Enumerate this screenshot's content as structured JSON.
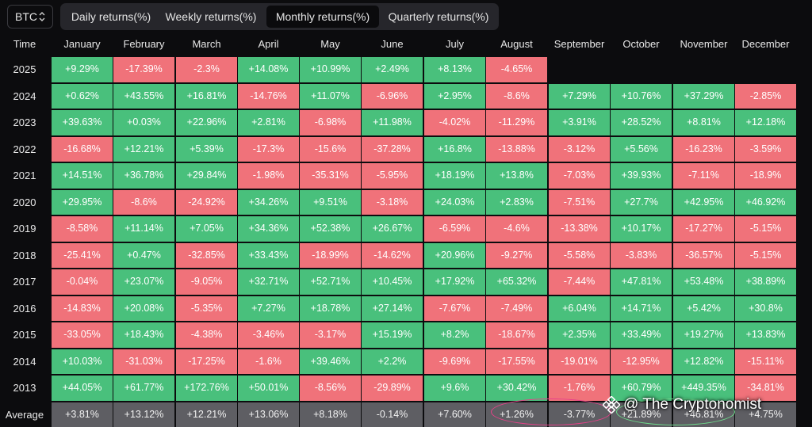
{
  "asset_selector": {
    "value": "BTC"
  },
  "tabs": [
    {
      "label": "Daily returns(%)",
      "active": false
    },
    {
      "label": "Weekly returns(%)",
      "active": false
    },
    {
      "label": "Monthly returns(%)",
      "active": true
    },
    {
      "label": "Quarterly returns(%)",
      "active": false
    }
  ],
  "table": {
    "time_header": "Time",
    "months": [
      "January",
      "February",
      "March",
      "April",
      "May",
      "June",
      "July",
      "August",
      "September",
      "October",
      "November",
      "December"
    ],
    "rows": [
      {
        "year": "2025",
        "values": [
          "+9.29%",
          "-17.39%",
          "-2.3%",
          "+14.08%",
          "+10.99%",
          "+2.49%",
          "+8.13%",
          "-4.65%",
          "",
          "",
          "",
          ""
        ]
      },
      {
        "year": "2024",
        "values": [
          "+0.62%",
          "+43.55%",
          "+16.81%",
          "-14.76%",
          "+11.07%",
          "-6.96%",
          "+2.95%",
          "-8.6%",
          "+7.29%",
          "+10.76%",
          "+37.29%",
          "-2.85%"
        ]
      },
      {
        "year": "2023",
        "values": [
          "+39.63%",
          "+0.03%",
          "+22.96%",
          "+2.81%",
          "-6.98%",
          "+11.98%",
          "-4.02%",
          "-11.29%",
          "+3.91%",
          "+28.52%",
          "+8.81%",
          "+12.18%"
        ]
      },
      {
        "year": "2022",
        "values": [
          "-16.68%",
          "+12.21%",
          "+5.39%",
          "-17.3%",
          "-15.6%",
          "-37.28%",
          "+16.8%",
          "-13.88%",
          "-3.12%",
          "+5.56%",
          "-16.23%",
          "-3.59%"
        ]
      },
      {
        "year": "2021",
        "values": [
          "+14.51%",
          "+36.78%",
          "+29.84%",
          "-1.98%",
          "-35.31%",
          "-5.95%",
          "+18.19%",
          "+13.8%",
          "-7.03%",
          "+39.93%",
          "-7.11%",
          "-18.9%"
        ]
      },
      {
        "year": "2020",
        "values": [
          "+29.95%",
          "-8.6%",
          "-24.92%",
          "+34.26%",
          "+9.51%",
          "-3.18%",
          "+24.03%",
          "+2.83%",
          "-7.51%",
          "+27.7%",
          "+42.95%",
          "+46.92%"
        ]
      },
      {
        "year": "2019",
        "values": [
          "-8.58%",
          "+11.14%",
          "+7.05%",
          "+34.36%",
          "+52.38%",
          "+26.67%",
          "-6.59%",
          "-4.6%",
          "-13.38%",
          "+10.17%",
          "-17.27%",
          "-5.15%"
        ]
      },
      {
        "year": "2018",
        "values": [
          "-25.41%",
          "+0.47%",
          "-32.85%",
          "+33.43%",
          "-18.99%",
          "-14.62%",
          "+20.96%",
          "-9.27%",
          "-5.58%",
          "-3.83%",
          "-36.57%",
          "-5.15%"
        ]
      },
      {
        "year": "2017",
        "values": [
          "-0.04%",
          "+23.07%",
          "-9.05%",
          "+32.71%",
          "+52.71%",
          "+10.45%",
          "+17.92%",
          "+65.32%",
          "-7.44%",
          "+47.81%",
          "+53.48%",
          "+38.89%"
        ]
      },
      {
        "year": "2016",
        "values": [
          "-14.83%",
          "+20.08%",
          "-5.35%",
          "+7.27%",
          "+18.78%",
          "+27.14%",
          "-7.67%",
          "-7.49%",
          "+6.04%",
          "+14.71%",
          "+5.42%",
          "+30.8%"
        ]
      },
      {
        "year": "2015",
        "values": [
          "-33.05%",
          "+18.43%",
          "-4.38%",
          "-3.46%",
          "-3.17%",
          "+15.19%",
          "+8.2%",
          "-18.67%",
          "+2.35%",
          "+33.49%",
          "+19.27%",
          "+13.83%"
        ]
      },
      {
        "year": "2014",
        "values": [
          "+10.03%",
          "-31.03%",
          "-17.25%",
          "-1.6%",
          "+39.46%",
          "+2.2%",
          "-9.69%",
          "-17.55%",
          "-19.01%",
          "-12.95%",
          "+12.82%",
          "-15.11%"
        ]
      },
      {
        "year": "2013",
        "values": [
          "+44.05%",
          "+61.77%",
          "+172.76%",
          "+50.01%",
          "-8.56%",
          "-29.89%",
          "+9.6%",
          "+30.42%",
          "-1.76%",
          "+60.79%",
          "+449.35%",
          "-34.81%"
        ]
      }
    ],
    "average": {
      "label": "Average",
      "values": [
        "+3.81%",
        "+13.12%",
        "+12.21%",
        "+13.06%",
        "+8.18%",
        "-0.14%",
        "+7.60%",
        "+1.26%",
        "-3.77%",
        "+21.89%",
        "+46.81%",
        "+4.75%"
      ]
    }
  },
  "colors": {
    "positive": "#49c07c",
    "negative": "#f0727a",
    "average": "#5e5e63",
    "highlight_pink": "#e8418a",
    "highlight_green": "#6fdc8c"
  },
  "watermark": {
    "text": "@ The Cryptonomist",
    "icon": "binance-logo-icon"
  }
}
